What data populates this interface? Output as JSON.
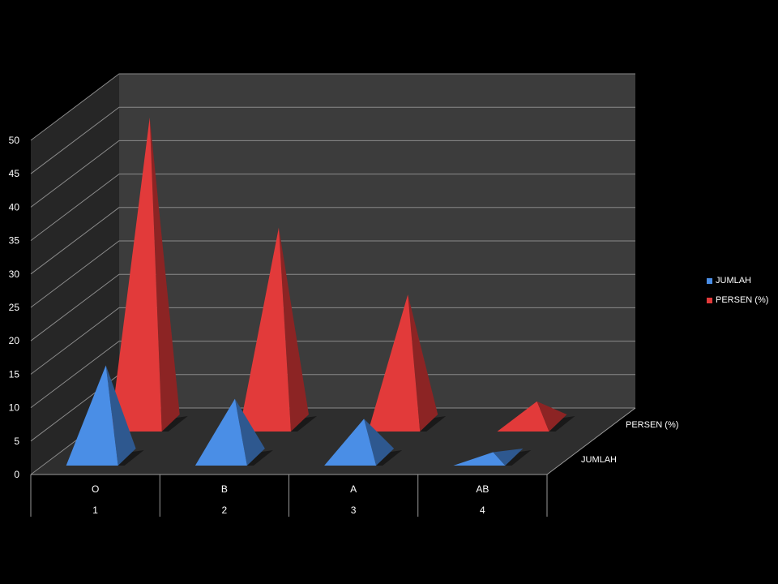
{
  "chart_data": {
    "type": "bar",
    "subtype": "3d-pyramid",
    "categories": [
      {
        "label": "O",
        "index": "1"
      },
      {
        "label": "B",
        "index": "2"
      },
      {
        "label": "A",
        "index": "3"
      },
      {
        "label": "AB",
        "index": "4"
      }
    ],
    "series": [
      {
        "name": "JUMLAH",
        "color": "#4a8ee6",
        "values": [
          15,
          10,
          7,
          2
        ]
      },
      {
        "name": "PERSEN (%)",
        "color": "#e23a3a",
        "values": [
          47,
          30.5,
          20.5,
          4.5
        ]
      }
    ],
    "ylim": [
      0,
      50
    ],
    "yticks": [
      0,
      5,
      10,
      15,
      20,
      25,
      30,
      35,
      40,
      45,
      50
    ],
    "grid": true,
    "legend": "right",
    "background": "#000000",
    "wall_color": "#3c3c3c",
    "floor_color": "#2e2e2e"
  }
}
